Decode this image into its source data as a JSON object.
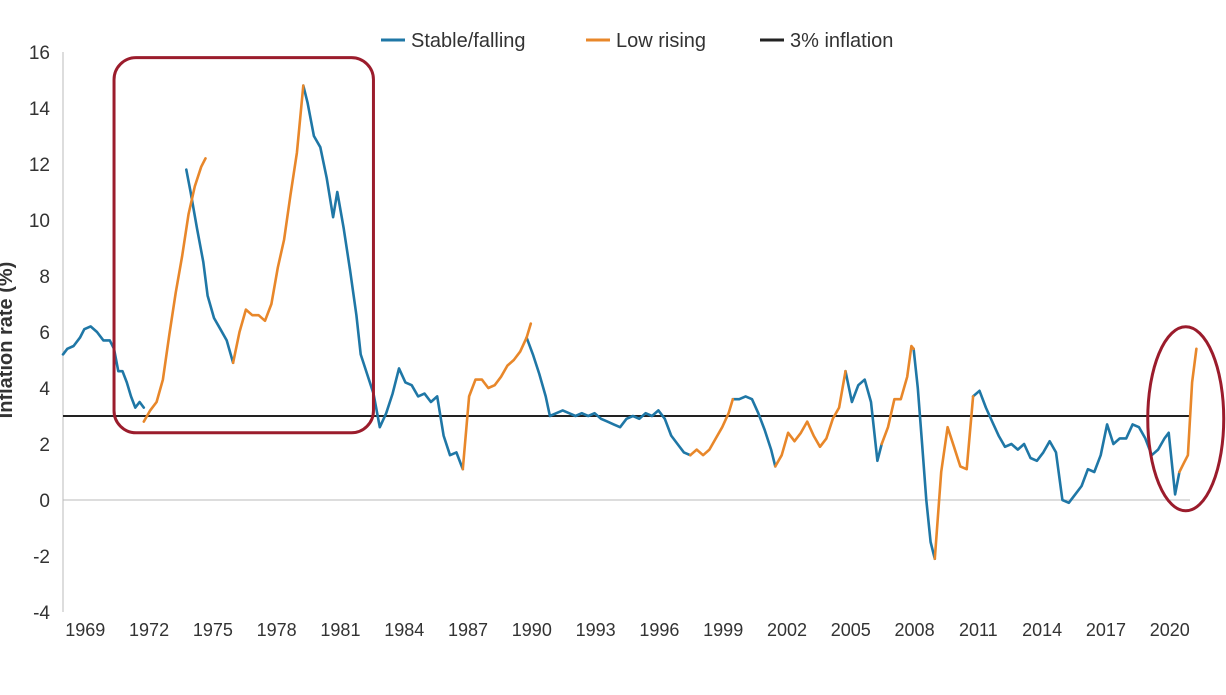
{
  "chart_data": {
    "type": "line",
    "title": "",
    "xlabel": "",
    "ylabel": "Inflation rate (%)",
    "ylim": [
      -4,
      16
    ],
    "xlim": [
      1968.0,
      2021.0
    ],
    "y_ticks": [
      "16",
      "14",
      "12",
      "10",
      "8",
      "6",
      "4",
      "2",
      "0",
      "-2",
      "-4"
    ],
    "x_ticks": [
      "1969",
      "1972",
      "1975",
      "1978",
      "1981",
      "1984",
      "1987",
      "1990",
      "1993",
      "1996",
      "1999",
      "2002",
      "2005",
      "2008",
      "2011",
      "2014",
      "2017",
      "2020"
    ],
    "legend": {
      "position": "top-center",
      "entries": [
        "Stable/falling",
        "Low rising",
        "3% inflation"
      ]
    },
    "colors": {
      "stable_falling": "#1f77a6",
      "low_rising": "#e8872a",
      "threshold": "#222222",
      "highlight": "#9b1c2c",
      "axis": "#bbbbbb"
    },
    "reference_line": {
      "name": "3% inflation",
      "value": 3
    },
    "series": [
      {
        "name": "Stable/falling",
        "color": "#1f77a6",
        "segments": [
          [
            [
              1968.0,
              5.2
            ],
            [
              1968.2,
              5.4
            ],
            [
              1968.5,
              5.5
            ],
            [
              1968.8,
              5.8
            ],
            [
              1969.0,
              6.1
            ],
            [
              1969.3,
              6.2
            ],
            [
              1969.6,
              6.0
            ],
            [
              1969.9,
              5.7
            ],
            [
              1970.2,
              5.7
            ],
            [
              1970.4,
              5.4
            ],
            [
              1970.6,
              4.6
            ],
            [
              1970.8,
              4.6
            ],
            [
              1971.0,
              4.2
            ],
            [
              1971.2,
              3.7
            ],
            [
              1971.4,
              3.3
            ],
            [
              1971.6,
              3.5
            ],
            [
              1971.8,
              3.3
            ]
          ],
          [
            [
              1973.8,
              11.8
            ],
            [
              1974.0,
              11.0
            ],
            [
              1974.3,
              9.7
            ],
            [
              1974.6,
              8.5
            ],
            [
              1974.8,
              7.3
            ],
            [
              1975.1,
              6.5
            ],
            [
              1975.4,
              6.1
            ],
            [
              1975.7,
              5.7
            ],
            [
              1976.0,
              4.9
            ]
          ],
          [
            [
              1979.3,
              14.8
            ],
            [
              1979.5,
              14.2
            ],
            [
              1979.8,
              13.0
            ],
            [
              1980.1,
              12.6
            ],
            [
              1980.4,
              11.5
            ],
            [
              1980.7,
              10.1
            ],
            [
              1980.9,
              11.0
            ],
            [
              1981.2,
              9.7
            ],
            [
              1981.5,
              8.2
            ],
            [
              1981.8,
              6.6
            ],
            [
              1982.0,
              5.2
            ],
            [
              1982.3,
              4.5
            ],
            [
              1982.6,
              3.8
            ],
            [
              1982.9,
              2.6
            ],
            [
              1983.2,
              3.1
            ],
            [
              1983.5,
              3.8
            ],
            [
              1983.8,
              4.7
            ],
            [
              1984.1,
              4.2
            ],
            [
              1984.4,
              4.1
            ],
            [
              1984.7,
              3.7
            ],
            [
              1985.0,
              3.8
            ],
            [
              1985.3,
              3.5
            ],
            [
              1985.6,
              3.7
            ],
            [
              1985.9,
              2.3
            ],
            [
              1986.2,
              1.6
            ],
            [
              1986.5,
              1.7
            ],
            [
              1986.8,
              1.1
            ]
          ],
          [
            [
              1989.8,
              5.8
            ],
            [
              1990.1,
              5.2
            ],
            [
              1990.4,
              4.5
            ],
            [
              1990.7,
              3.7
            ],
            [
              1990.9,
              3.0
            ],
            [
              1991.2,
              3.1
            ],
            [
              1991.5,
              3.2
            ],
            [
              1991.8,
              3.1
            ],
            [
              1992.1,
              3.0
            ],
            [
              1992.4,
              3.1
            ],
            [
              1992.7,
              3.0
            ],
            [
              1993.0,
              3.1
            ],
            [
              1993.3,
              2.9
            ],
            [
              1993.6,
              2.8
            ],
            [
              1993.9,
              2.7
            ],
            [
              1994.2,
              2.6
            ],
            [
              1994.5,
              2.9
            ],
            [
              1994.8,
              3.0
            ],
            [
              1995.1,
              2.9
            ],
            [
              1995.4,
              3.1
            ],
            [
              1995.7,
              3.0
            ],
            [
              1996.0,
              3.2
            ],
            [
              1996.3,
              2.9
            ],
            [
              1996.6,
              2.3
            ],
            [
              1996.9,
              2.0
            ],
            [
              1997.2,
              1.7
            ],
            [
              1997.5,
              1.6
            ]
          ],
          [
            [
              1999.5,
              3.6
            ],
            [
              1999.8,
              3.6
            ],
            [
              2000.1,
              3.7
            ],
            [
              2000.4,
              3.6
            ],
            [
              2000.7,
              3.1
            ],
            [
              2001.0,
              2.5
            ],
            [
              2001.3,
              1.8
            ],
            [
              2001.5,
              1.2
            ]
          ],
          [
            [
              2004.8,
              4.6
            ],
            [
              2005.1,
              3.5
            ],
            [
              2005.4,
              4.1
            ],
            [
              2005.7,
              4.3
            ],
            [
              2006.0,
              3.5
            ],
            [
              2006.3,
              1.4
            ],
            [
              2006.5,
              2.0
            ]
          ],
          [
            [
              2008.0,
              5.4
            ],
            [
              2008.2,
              4.0
            ],
            [
              2008.4,
              2.0
            ],
            [
              2008.6,
              0.0
            ],
            [
              2008.8,
              -1.5
            ],
            [
              2009.0,
              -2.1
            ]
          ],
          [
            [
              2010.8,
              3.7
            ],
            [
              2011.1,
              3.9
            ],
            [
              2011.4,
              3.3
            ],
            [
              2011.7,
              2.8
            ],
            [
              2012.0,
              2.3
            ],
            [
              2012.3,
              1.9
            ],
            [
              2012.6,
              2.0
            ],
            [
              2012.9,
              1.8
            ],
            [
              2013.2,
              2.0
            ],
            [
              2013.5,
              1.5
            ],
            [
              2013.8,
              1.4
            ],
            [
              2014.1,
              1.7
            ],
            [
              2014.4,
              2.1
            ],
            [
              2014.7,
              1.7
            ],
            [
              2015.0,
              0.0
            ],
            [
              2015.3,
              -0.1
            ],
            [
              2015.6,
              0.2
            ],
            [
              2015.9,
              0.5
            ],
            [
              2016.2,
              1.1
            ],
            [
              2016.5,
              1.0
            ],
            [
              2016.8,
              1.6
            ],
            [
              2017.1,
              2.7
            ],
            [
              2017.4,
              2.0
            ],
            [
              2017.7,
              2.2
            ],
            [
              2018.0,
              2.2
            ],
            [
              2018.3,
              2.7
            ],
            [
              2018.6,
              2.6
            ],
            [
              2018.9,
              2.2
            ],
            [
              2019.2,
              1.6
            ],
            [
              2019.5,
              1.8
            ],
            [
              2019.8,
              2.2
            ],
            [
              2020.0,
              2.4
            ],
            [
              2020.3,
              0.2
            ],
            [
              2020.5,
              1.0
            ]
          ]
        ]
      },
      {
        "name": "Low rising",
        "color": "#e8872a",
        "segments": [
          [
            [
              1971.8,
              2.8
            ],
            [
              1972.1,
              3.2
            ],
            [
              1972.4,
              3.5
            ],
            [
              1972.7,
              4.3
            ],
            [
              1973.0,
              5.9
            ],
            [
              1973.3,
              7.4
            ],
            [
              1973.6,
              8.7
            ],
            [
              1973.9,
              10.2
            ],
            [
              1974.2,
              11.2
            ],
            [
              1974.5,
              11.9
            ],
            [
              1974.7,
              12.2
            ]
          ],
          [
            [
              1976.0,
              4.9
            ],
            [
              1976.3,
              6.0
            ],
            [
              1976.6,
              6.8
            ],
            [
              1976.9,
              6.6
            ],
            [
              1977.2,
              6.6
            ],
            [
              1977.5,
              6.4
            ],
            [
              1977.8,
              7.0
            ],
            [
              1978.1,
              8.3
            ],
            [
              1978.4,
              9.3
            ],
            [
              1978.7,
              10.9
            ],
            [
              1979.0,
              12.4
            ],
            [
              1979.3,
              14.8
            ]
          ],
          [
            [
              1986.8,
              1.1
            ],
            [
              1987.1,
              3.7
            ],
            [
              1987.4,
              4.3
            ],
            [
              1987.7,
              4.3
            ],
            [
              1988.0,
              4.0
            ],
            [
              1988.3,
              4.1
            ],
            [
              1988.6,
              4.4
            ],
            [
              1988.9,
              4.8
            ],
            [
              1989.2,
              5.0
            ],
            [
              1989.5,
              5.3
            ],
            [
              1989.8,
              5.8
            ],
            [
              1990.0,
              6.3
            ]
          ],
          [
            [
              1997.5,
              1.6
            ],
            [
              1997.8,
              1.8
            ],
            [
              1998.1,
              1.6
            ],
            [
              1998.4,
              1.8
            ],
            [
              1998.7,
              2.2
            ],
            [
              1999.0,
              2.6
            ],
            [
              1999.3,
              3.1
            ],
            [
              1999.5,
              3.6
            ]
          ],
          [
            [
              2001.5,
              1.2
            ],
            [
              2001.8,
              1.6
            ],
            [
              2002.1,
              2.4
            ],
            [
              2002.4,
              2.1
            ],
            [
              2002.7,
              2.4
            ],
            [
              2003.0,
              2.8
            ],
            [
              2003.3,
              2.3
            ],
            [
              2003.6,
              1.9
            ],
            [
              2003.9,
              2.2
            ],
            [
              2004.2,
              2.9
            ],
            [
              2004.5,
              3.3
            ],
            [
              2004.8,
              4.6
            ]
          ],
          [
            [
              2006.5,
              2.0
            ],
            [
              2006.8,
              2.6
            ],
            [
              2007.1,
              3.6
            ],
            [
              2007.4,
              3.6
            ],
            [
              2007.7,
              4.4
            ],
            [
              2007.9,
              5.5
            ],
            [
              2008.0,
              5.4
            ]
          ],
          [
            [
              2009.0,
              -2.1
            ],
            [
              2009.3,
              1.0
            ],
            [
              2009.6,
              2.6
            ],
            [
              2009.9,
              1.9
            ],
            [
              2010.2,
              1.2
            ],
            [
              2010.5,
              1.1
            ],
            [
              2010.8,
              3.7
            ]
          ],
          [
            [
              2020.5,
              1.0
            ],
            [
              2020.7,
              1.3
            ],
            [
              2020.9,
              1.6
            ],
            [
              2021.1,
              4.2
            ],
            [
              2021.3,
              5.4
            ]
          ]
        ]
      }
    ]
  }
}
